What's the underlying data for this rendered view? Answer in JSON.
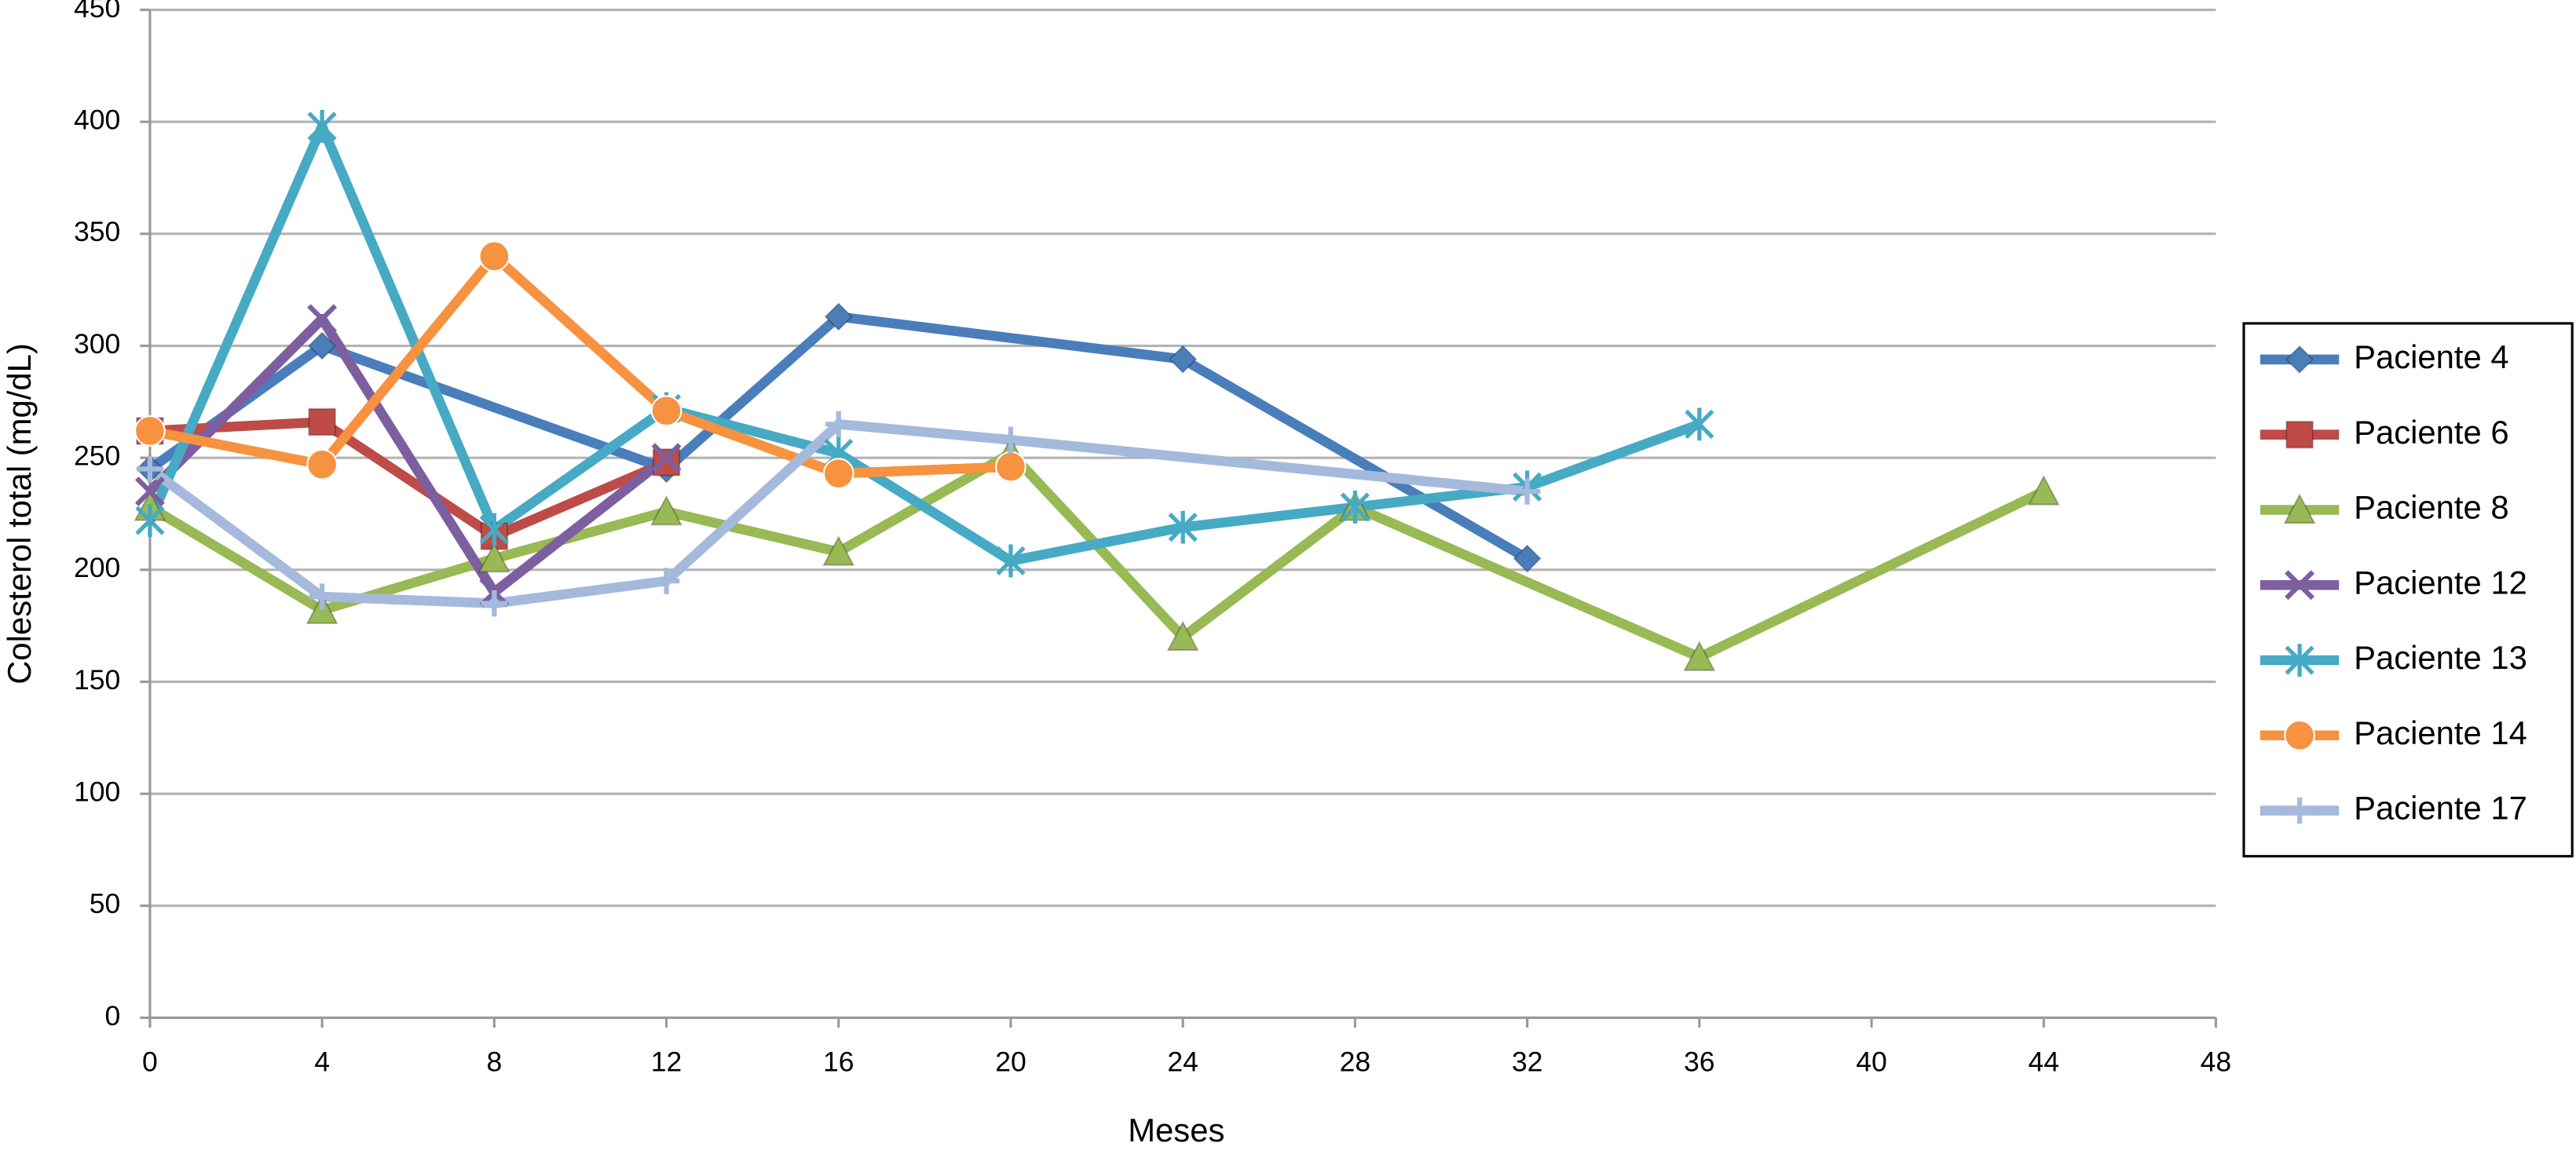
{
  "chart_data": {
    "type": "line",
    "xlabel": "Meses",
    "ylabel": "Colesterol total (mg/dL)",
    "xlim": [
      0,
      48
    ],
    "xticks": [
      0,
      4,
      8,
      12,
      16,
      20,
      24,
      28,
      32,
      36,
      40,
      44,
      48
    ],
    "ylim": [
      0,
      450
    ],
    "yticks": [
      0,
      50,
      100,
      150,
      200,
      250,
      300,
      350,
      400,
      450
    ],
    "grid": true,
    "legend": "right",
    "series": [
      {
        "name": "Paciente 4",
        "color": "#4a7ebb",
        "marker": "diamond",
        "x": [
          0,
          4,
          12,
          16,
          24,
          32
        ],
        "values": [
          245,
          300,
          245,
          313,
          294,
          205
        ]
      },
      {
        "name": "Paciente 6",
        "color": "#be4b48",
        "marker": "square",
        "x": [
          0,
          4,
          8,
          12
        ],
        "values": [
          262,
          266,
          215,
          248
        ]
      },
      {
        "name": "Paciente 8",
        "color": "#98b954",
        "marker": "triangle",
        "x": [
          0,
          4,
          8,
          12,
          16,
          20,
          24,
          28,
          36,
          44
        ],
        "values": [
          228,
          182,
          205,
          226,
          208,
          252,
          170,
          228,
          161,
          235
        ]
      },
      {
        "name": "Paciente 12",
        "color": "#7d5fa0",
        "marker": "x",
        "x": [
          0,
          4,
          8,
          12
        ],
        "values": [
          235,
          312,
          190,
          250
        ]
      },
      {
        "name": "Paciente 13",
        "color": "#46aac5",
        "marker": "star",
        "x": [
          0,
          4,
          8,
          12,
          16,
          20,
          24,
          28,
          32,
          36
        ],
        "values": [
          222,
          398,
          218,
          272,
          252,
          204,
          219,
          228,
          237,
          265
        ]
      },
      {
        "name": "Paciente 14",
        "color": "#f69240",
        "marker": "circle",
        "x": [
          0,
          4,
          8,
          12,
          16,
          20
        ],
        "values": [
          262,
          247,
          340,
          271,
          243,
          246
        ]
      },
      {
        "name": "Paciente 17",
        "color": "#a5b9dc",
        "marker": "plus",
        "x": [
          0,
          4,
          8,
          12,
          16,
          20,
          32
        ],
        "values": [
          245,
          188,
          185,
          195,
          265,
          258,
          235
        ]
      }
    ]
  }
}
